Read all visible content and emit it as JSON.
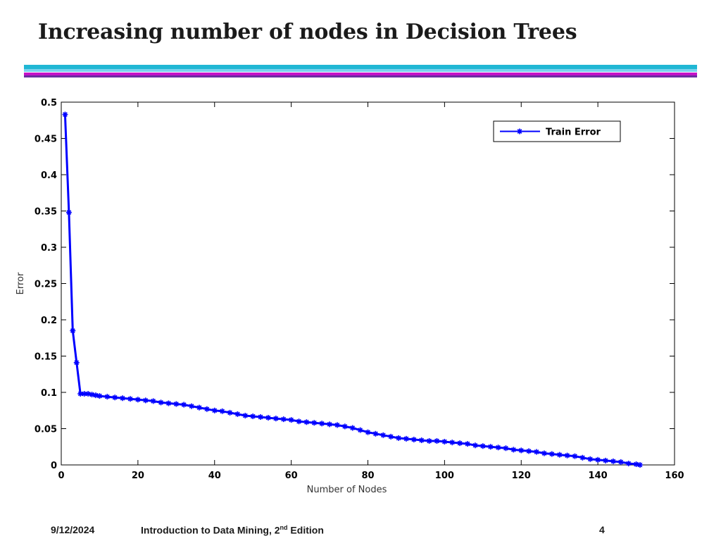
{
  "slide": {
    "title": "Increasing number of nodes in Decision Trees"
  },
  "footer": {
    "date": "9/12/2024",
    "course_prefix": "Introduction to Data Mining, 2",
    "course_sup": "nd",
    "course_suffix": " Edition",
    "page": "4"
  },
  "colors": {
    "series": "#0000ff",
    "rule_cyan": "#20b7d4",
    "rule_magenta": "#c512c8"
  },
  "chart_data": {
    "type": "line",
    "xlabel": "Number of Nodes",
    "ylabel": "Error",
    "xlim": [
      0,
      160
    ],
    "ylim": [
      0,
      0.5
    ],
    "xticks": [
      0,
      20,
      40,
      60,
      80,
      100,
      120,
      140,
      160
    ],
    "yticks": [
      0,
      0.05,
      0.1,
      0.15,
      0.2,
      0.25,
      0.3,
      0.35,
      0.4,
      0.45,
      0.5
    ],
    "ytick_labels": [
      "0",
      "0.05",
      "0.1",
      "0.15",
      "0.2",
      "0.25",
      "0.3",
      "0.35",
      "0.4",
      "0.45",
      "0.5"
    ],
    "grid": false,
    "legend_position": "top-right",
    "series": [
      {
        "name": "Train Error",
        "marker": "star",
        "x": [
          1,
          2,
          3,
          4,
          5,
          6,
          7,
          8,
          9,
          10,
          12,
          14,
          16,
          18,
          20,
          22,
          24,
          26,
          28,
          30,
          32,
          34,
          36,
          38,
          40,
          42,
          44,
          46,
          48,
          50,
          52,
          54,
          56,
          58,
          60,
          62,
          64,
          66,
          68,
          70,
          72,
          74,
          76,
          78,
          80,
          82,
          84,
          86,
          88,
          90,
          92,
          94,
          96,
          98,
          100,
          102,
          104,
          106,
          108,
          110,
          112,
          114,
          116,
          118,
          120,
          122,
          124,
          126,
          128,
          130,
          132,
          134,
          136,
          138,
          140,
          142,
          144,
          146,
          148,
          150,
          151
        ],
        "y": [
          0.483,
          0.348,
          0.185,
          0.141,
          0.098,
          0.098,
          0.098,
          0.097,
          0.096,
          0.095,
          0.094,
          0.093,
          0.092,
          0.091,
          0.09,
          0.089,
          0.088,
          0.086,
          0.085,
          0.084,
          0.083,
          0.081,
          0.079,
          0.077,
          0.075,
          0.074,
          0.072,
          0.07,
          0.068,
          0.067,
          0.066,
          0.065,
          0.064,
          0.063,
          0.062,
          0.06,
          0.059,
          0.058,
          0.057,
          0.056,
          0.055,
          0.053,
          0.051,
          0.048,
          0.045,
          0.043,
          0.041,
          0.039,
          0.037,
          0.036,
          0.035,
          0.034,
          0.033,
          0.033,
          0.032,
          0.031,
          0.03,
          0.029,
          0.027,
          0.026,
          0.025,
          0.024,
          0.023,
          0.021,
          0.02,
          0.019,
          0.018,
          0.016,
          0.015,
          0.014,
          0.013,
          0.012,
          0.01,
          0.008,
          0.007,
          0.006,
          0.005,
          0.004,
          0.002,
          0.001,
          0.0
        ]
      }
    ]
  }
}
